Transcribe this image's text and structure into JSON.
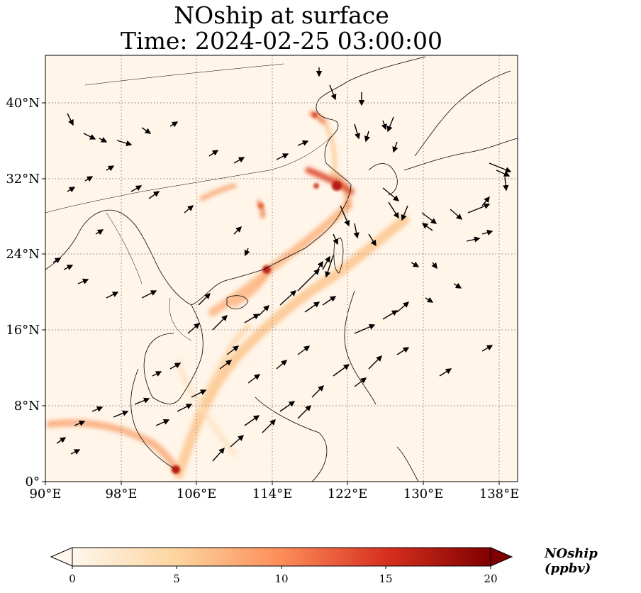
{
  "title": {
    "line1": "NOship at surface",
    "line2": "Time: 2024-02-25 03:00:00"
  },
  "axes": {
    "lon_ticks": [
      "90°E",
      "98°E",
      "106°E",
      "114°E",
      "122°E",
      "130°E",
      "138°E"
    ],
    "lat_ticks": [
      "0°",
      "8°N",
      "16°N",
      "24°N",
      "32°N",
      "40°N"
    ],
    "lon_range": [
      90,
      140
    ],
    "lat_range": [
      0,
      45
    ],
    "grid": "dotted"
  },
  "colorbar": {
    "label": "NOship (ppbv)",
    "ticks": [
      "0",
      "5",
      "10",
      "15",
      "20"
    ],
    "min": 0,
    "max": 20,
    "extend": "both",
    "colormap": "OrRd",
    "colors": [
      "#fff7ec",
      "#fdd49e",
      "#fc8d59",
      "#d7301f",
      "#7f0000"
    ]
  },
  "colors": {
    "background_field": "#fff5e8",
    "coastline": "#000000",
    "wind_vector": "#000000",
    "gridline": "#808080"
  },
  "legend_items": {
    "wind_vectors": "wind-arrow-icon"
  }
}
